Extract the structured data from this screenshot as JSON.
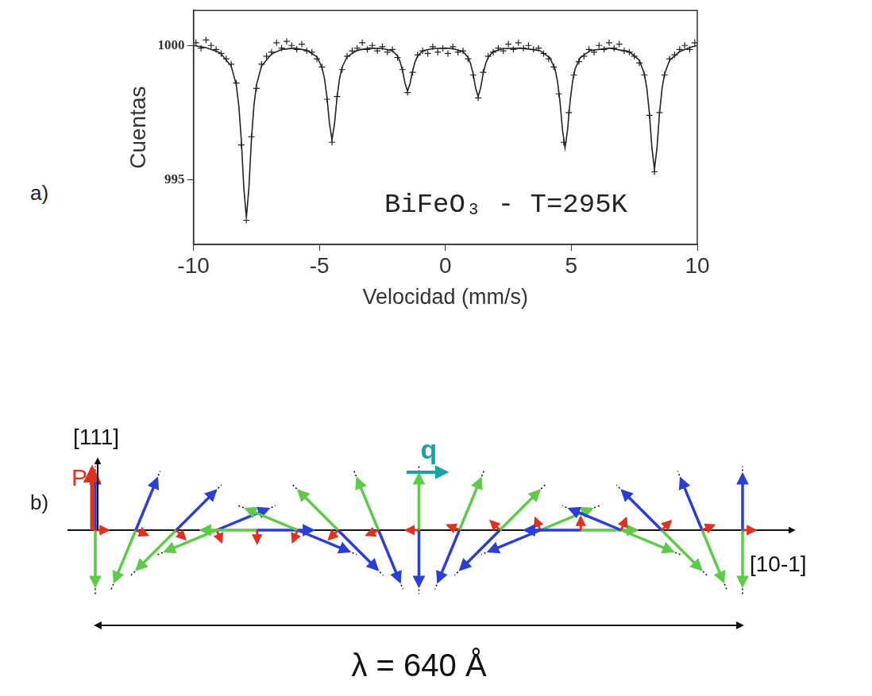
{
  "panel_labels": [
    "a)",
    "b)"
  ],
  "chart_data": {
    "type": "scatter",
    "x_label": "Velocidad (mm/s)",
    "y_label": "Cuentas",
    "annotations": [
      "BiFeO₃ - T=295K"
    ],
    "xlim": [
      -10,
      10
    ],
    "xticks": [
      -10,
      -5,
      0,
      5,
      10
    ],
    "ylim": [
      992.6,
      1001.3
    ],
    "yticks": [
      995,
      1000
    ],
    "grid": false,
    "series": [
      {
        "type": "scatter",
        "marker": "cross",
        "color": "#222222",
        "x": [
          -9.9,
          -9.7,
          -9.5,
          -9.3,
          -9.1,
          -8.9,
          -8.7,
          -8.5,
          -8.3,
          -8.1,
          -7.9,
          -7.7,
          -7.5,
          -7.3,
          -7.1,
          -6.9,
          -6.7,
          -6.5,
          -6.3,
          -6.1,
          -5.9,
          -5.7,
          -5.5,
          -5.3,
          -5.1,
          -4.9,
          -4.7,
          -4.5,
          -4.3,
          -4.1,
          -3.9,
          -3.7,
          -3.5,
          -3.3,
          -3.1,
          -2.9,
          -2.7,
          -2.5,
          -2.3,
          -2.1,
          -1.9,
          -1.7,
          -1.5,
          -1.3,
          -1.1,
          -0.9,
          -0.7,
          -0.5,
          -0.3,
          -0.1,
          0.1,
          0.3,
          0.5,
          0.7,
          0.9,
          1.1,
          1.3,
          1.5,
          1.7,
          1.9,
          2.1,
          2.3,
          2.5,
          2.7,
          2.9,
          3.1,
          3.3,
          3.5,
          3.7,
          3.9,
          4.1,
          4.3,
          4.5,
          4.7,
          4.9,
          5.1,
          5.3,
          5.5,
          5.7,
          5.9,
          6.1,
          6.3,
          6.5,
          6.7,
          6.9,
          7.1,
          7.3,
          7.5,
          7.7,
          7.9,
          8.1,
          8.3,
          8.5,
          8.7,
          8.9,
          9.1,
          9.3,
          9.5,
          9.7,
          9.9
        ],
        "values": [
          1000.1,
          999.9,
          1000.2,
          1000.0,
          999.85,
          999.7,
          999.5,
          999.3,
          998.6,
          996.3,
          993.5,
          996.6,
          998.4,
          999.3,
          999.6,
          999.75,
          1000.1,
          999.9,
          1000.15,
          1000.0,
          999.85,
          1000.05,
          999.8,
          999.75,
          999.5,
          999.2,
          998.0,
          996.4,
          998.1,
          999.1,
          999.6,
          999.8,
          999.9,
          1000.1,
          999.85,
          1000.0,
          999.8,
          999.95,
          999.75,
          999.85,
          999.55,
          999.1,
          998.25,
          999.0,
          999.65,
          999.8,
          999.7,
          999.95,
          999.75,
          999.9,
          999.7,
          999.95,
          999.75,
          999.8,
          999.5,
          998.9,
          998.05,
          999.0,
          999.6,
          999.75,
          999.9,
          999.8,
          1000.05,
          999.85,
          1000.1,
          999.9,
          1000.0,
          999.85,
          999.9,
          999.7,
          999.5,
          999.2,
          998.2,
          996.4,
          997.5,
          998.9,
          999.4,
          999.6,
          999.85,
          999.75,
          1000.0,
          999.85,
          1000.1,
          999.9,
          1000.05,
          999.8,
          999.75,
          999.6,
          999.35,
          998.9,
          997.4,
          995.3,
          997.5,
          998.9,
          999.5,
          999.65,
          999.85,
          1000.0,
          999.85,
          1000.1
        ]
      },
      {
        "type": "line",
        "line_style": "solid",
        "color": "#222222",
        "x": [
          -10,
          -9.5,
          -9,
          -8.9,
          -8.5,
          -8.3,
          -8.2,
          -8.1,
          -8.0,
          -7.9,
          -7.8,
          -7.7,
          -7.6,
          -7.5,
          -7.3,
          -6.9,
          -6.5,
          -6,
          -5.5,
          -5.1,
          -4.9,
          -4.8,
          -4.7,
          -4.6,
          -4.5,
          -4.4,
          -4.3,
          -4.2,
          -4.1,
          -3.9,
          -3.5,
          -3,
          -2.5,
          -2.1,
          -1.9,
          -1.8,
          -1.7,
          -1.6,
          -1.5,
          -1.4,
          -1.3,
          -1.2,
          -1.1,
          -0.9,
          -0.5,
          0,
          0.3,
          0.7,
          0.9,
          1.0,
          1.1,
          1.2,
          1.3,
          1.4,
          1.5,
          1.6,
          1.7,
          1.9,
          2.3,
          3,
          3.75,
          4.15,
          4.35,
          4.45,
          4.55,
          4.65,
          4.75,
          4.85,
          4.95,
          5.05,
          5.15,
          5.35,
          5.75,
          6.5,
          7.3,
          7.7,
          7.9,
          8.0,
          8.1,
          8.2,
          8.3,
          8.4,
          8.5,
          8.6,
          8.7,
          8.9,
          9.3,
          9.7,
          10
        ],
        "values": [
          1000,
          999.92,
          999.75,
          999.68,
          999.23,
          998.53,
          997.76,
          996.48,
          994.69,
          993.6,
          994.69,
          996.48,
          997.76,
          998.53,
          999.23,
          999.68,
          999.85,
          999.9,
          999.82,
          999.58,
          999.19,
          998.77,
          998.07,
          997.09,
          996.5,
          997.09,
          998.07,
          998.77,
          999.19,
          999.58,
          999.82,
          999.9,
          999.88,
          999.8,
          999.61,
          999.4,
          999.06,
          998.59,
          998.3,
          998.59,
          999.06,
          999.4,
          999.61,
          999.8,
          999.88,
          999.9,
          999.88,
          999.77,
          999.56,
          999.33,
          998.95,
          998.42,
          998.1,
          998.42,
          998.95,
          999.33,
          999.56,
          999.77,
          999.88,
          999.9,
          999.81,
          999.54,
          999.13,
          998.67,
          997.91,
          996.85,
          996.2,
          996.85,
          997.91,
          998.67,
          999.13,
          999.54,
          999.81,
          999.9,
          999.77,
          999.45,
          998.94,
          998.39,
          997.47,
          996.18,
          995.4,
          996.18,
          997.47,
          998.39,
          998.94,
          999.45,
          999.77,
          999.92,
          1000
        ]
      }
    ]
  },
  "diagram": {
    "vertical_axis": "[111]",
    "horizontal_axis": "[10-1]",
    "polarization": "P",
    "wave_vector": "q",
    "period": "λ = 640 Å"
  }
}
